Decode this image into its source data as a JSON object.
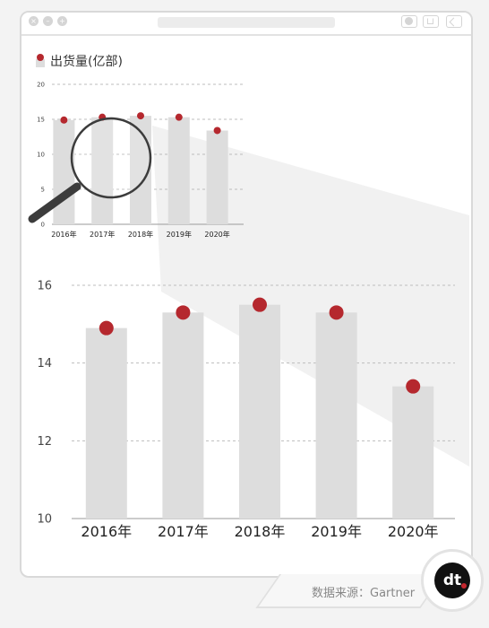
{
  "legend": {
    "label": "出货量(亿部)"
  },
  "source": {
    "text": "数据来源：Gartner"
  },
  "logo": {
    "text": "dt"
  },
  "colors": {
    "bar": "#dddddd",
    "dot": "#b5282e",
    "grid": "#bdbdbd",
    "magnifier": "#3c3c3c"
  },
  "chart_data": [
    {
      "type": "bar",
      "role": "overview",
      "categories": [
        "2016年",
        "2017年",
        "2018年",
        "2019年",
        "2020年"
      ],
      "values": [
        14.9,
        15.3,
        15.5,
        15.3,
        13.4
      ],
      "ylim": [
        0,
        20
      ],
      "yticks": [
        "0",
        "5",
        "10",
        "15",
        "20"
      ],
      "grid": true
    },
    {
      "type": "bar",
      "role": "zoomed",
      "categories": [
        "2016年",
        "2017年",
        "2018年",
        "2019年",
        "2020年"
      ],
      "values": [
        14.9,
        15.3,
        15.5,
        15.3,
        13.4
      ],
      "ylim": [
        10,
        16
      ],
      "yticks": [
        "10",
        "12",
        "14",
        "16"
      ],
      "grid": true
    }
  ]
}
